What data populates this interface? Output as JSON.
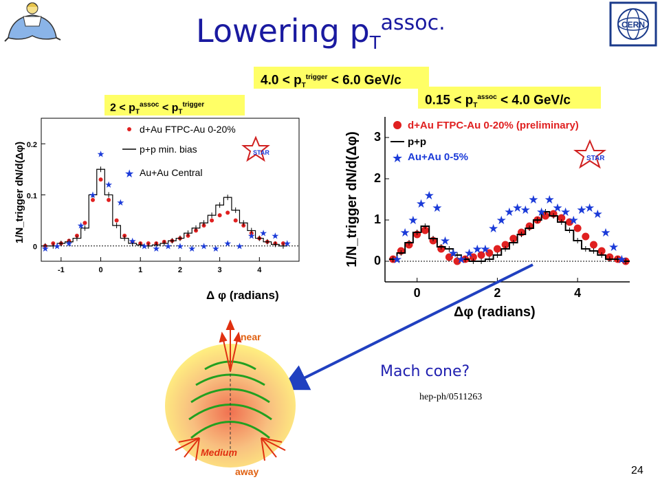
{
  "slide": {
    "title_main": "Lowering p",
    "title_sub": "T",
    "title_sup": "assoc.",
    "page_number": "24",
    "mach_cone_label": "Mach cone?",
    "reference": "hep-ph/0511263",
    "cern_logo_text": "CERN"
  },
  "boxes": {
    "trigger_range": {
      "pre": "4.0 < p",
      "sub": "T",
      "sup": "trigger",
      "post": " < 6.0 GeV/c"
    },
    "assoc_range_right": {
      "pre": "0.15 < p",
      "sub": "T",
      "sup": "assoc",
      "post": " < 4.0 GeV/c"
    },
    "assoc_range_left": {
      "pre": "2 < p",
      "sub": "T",
      "sup": "assoc",
      "mid": " < p",
      "sub2": "T",
      "sup2": "trigger"
    }
  },
  "diagram": {
    "near_label": "near",
    "away_label": "away",
    "medium_label": "Medium"
  },
  "colors": {
    "title": "#1a1aa0",
    "box": "#ffff66",
    "dAu": "#e02020",
    "AuAu": "#1a3ad8",
    "pp": "#000000",
    "arrow": "#2040c0"
  },
  "chart_data": [
    {
      "type": "scatter",
      "xlabel": "Δ φ (radians)",
      "ylabel": "1/N_trigger dN/d(Δφ)",
      "xlim": [
        -1.5,
        5.0
      ],
      "ylim": [
        -0.03,
        0.25
      ],
      "xticks": [
        "-1",
        "0",
        "1",
        "2",
        "3",
        "4"
      ],
      "yticks": [
        "0",
        "0.1",
        "0.2"
      ],
      "legend": [
        "d+Au FTPC-Au 0-20%",
        "p+p min. bias",
        "Au+Au Central"
      ],
      "legend_position": "top-right",
      "series": [
        {
          "name": "d+Au FTPC-Au 0-20%",
          "marker": "dot",
          "x": [
            -1.4,
            -1.2,
            -1.0,
            -0.8,
            -0.6,
            -0.4,
            -0.2,
            0.0,
            0.2,
            0.4,
            0.6,
            0.8,
            1.0,
            1.2,
            1.4,
            1.6,
            1.8,
            2.0,
            2.2,
            2.4,
            2.6,
            2.8,
            3.0,
            3.2,
            3.4,
            3.6,
            3.8,
            4.0,
            4.2,
            4.4,
            4.6
          ],
          "y": [
            0.0,
            0.005,
            0.005,
            0.01,
            0.02,
            0.045,
            0.09,
            0.13,
            0.09,
            0.05,
            0.02,
            0.008,
            0.005,
            0.005,
            0.005,
            0.008,
            0.01,
            0.015,
            0.02,
            0.03,
            0.04,
            0.05,
            0.06,
            0.065,
            0.05,
            0.04,
            0.025,
            0.015,
            0.008,
            0.005,
            0.005
          ]
        },
        {
          "name": "p+p min. bias",
          "marker": "step",
          "x": [
            -1.4,
            -1.2,
            -1.0,
            -0.8,
            -0.6,
            -0.4,
            -0.2,
            0.0,
            0.2,
            0.4,
            0.6,
            0.8,
            1.0,
            1.2,
            1.4,
            1.6,
            1.8,
            2.0,
            2.2,
            2.4,
            2.6,
            2.8,
            3.0,
            3.2,
            3.4,
            3.6,
            3.8,
            4.0,
            4.2,
            4.4,
            4.6
          ],
          "y": [
            0.0,
            0.0,
            0.005,
            0.008,
            0.015,
            0.035,
            0.1,
            0.15,
            0.1,
            0.04,
            0.015,
            0.005,
            0.002,
            0.0,
            0.002,
            0.005,
            0.01,
            0.015,
            0.025,
            0.035,
            0.045,
            0.06,
            0.08,
            0.095,
            0.07,
            0.045,
            0.03,
            0.015,
            0.008,
            0.003,
            0.0
          ]
        },
        {
          "name": "Au+Au Central",
          "marker": "star",
          "x": [
            -1.4,
            -1.1,
            -0.8,
            -0.5,
            -0.2,
            0.0,
            0.2,
            0.5,
            0.8,
            1.1,
            1.4,
            1.7,
            2.0,
            2.3,
            2.6,
            2.9,
            3.2,
            3.5,
            3.8,
            4.1,
            4.4,
            4.7
          ],
          "y": [
            -0.005,
            0.0,
            0.005,
            0.04,
            0.1,
            0.18,
            0.12,
            0.085,
            0.01,
            0.0,
            -0.005,
            0.0,
            0.0,
            -0.005,
            0.0,
            -0.005,
            0.005,
            0.0,
            0.02,
            0.025,
            0.02,
            0.005
          ]
        }
      ]
    },
    {
      "type": "scatter",
      "xlabel": "Δφ (radians)",
      "ylabel": "1/N_trigger dN/d(Δφ)",
      "xlim": [
        -0.8,
        5.3
      ],
      "ylim": [
        -0.5,
        3.5
      ],
      "xticks": [
        "0",
        "2",
        "4"
      ],
      "yticks": [
        "0",
        "1",
        "2",
        "3"
      ],
      "legend": [
        "d+Au FTPC-Au 0-20% (preliminary)",
        "p+p",
        "Au+Au 0-5%"
      ],
      "legend_position": "top-left",
      "series": [
        {
          "name": "d+Au FTPC-Au 0-20% (preliminary)",
          "marker": "dot",
          "x": [
            -0.6,
            -0.4,
            -0.2,
            0.0,
            0.2,
            0.4,
            0.6,
            0.8,
            1.0,
            1.2,
            1.4,
            1.6,
            1.8,
            2.0,
            2.2,
            2.4,
            2.6,
            2.8,
            3.0,
            3.2,
            3.4,
            3.6,
            3.8,
            4.0,
            4.2,
            4.4,
            4.6,
            4.8,
            5.0,
            5.2
          ],
          "y": [
            0.05,
            0.25,
            0.4,
            0.65,
            0.75,
            0.5,
            0.3,
            0.1,
            0.0,
            0.05,
            0.1,
            0.15,
            0.2,
            0.3,
            0.4,
            0.55,
            0.7,
            0.85,
            1.0,
            1.1,
            1.15,
            1.05,
            0.95,
            0.8,
            0.6,
            0.4,
            0.25,
            0.1,
            0.05,
            0.0
          ]
        },
        {
          "name": "p+p",
          "marker": "step",
          "x": [
            -0.6,
            -0.4,
            -0.2,
            0.0,
            0.2,
            0.4,
            0.6,
            0.8,
            1.0,
            1.2,
            1.4,
            1.6,
            1.8,
            2.0,
            2.2,
            2.4,
            2.6,
            2.8,
            3.0,
            3.2,
            3.4,
            3.6,
            3.8,
            4.0,
            4.2,
            4.4,
            4.6,
            4.8,
            5.0,
            5.2
          ],
          "y": [
            0.05,
            0.2,
            0.45,
            0.7,
            0.85,
            0.55,
            0.35,
            0.3,
            0.15,
            0.05,
            0.0,
            0.0,
            0.05,
            0.15,
            0.3,
            0.45,
            0.65,
            0.8,
            1.0,
            1.2,
            1.1,
            0.95,
            0.75,
            0.5,
            0.3,
            0.25,
            0.15,
            0.05,
            0.05,
            0.0
          ]
        },
        {
          "name": "Au+Au 0-5%",
          "marker": "star",
          "x": [
            -0.5,
            -0.3,
            -0.1,
            0.1,
            0.3,
            0.5,
            0.7,
            0.9,
            1.1,
            1.3,
            1.5,
            1.7,
            1.9,
            2.1,
            2.3,
            2.5,
            2.7,
            2.9,
            3.1,
            3.3,
            3.5,
            3.7,
            3.9,
            4.1,
            4.3,
            4.5,
            4.7,
            4.9,
            5.1
          ],
          "y": [
            0.05,
            0.7,
            1.0,
            1.4,
            1.6,
            1.3,
            0.5,
            0.2,
            0.05,
            0.2,
            0.3,
            0.3,
            0.8,
            1.0,
            1.2,
            1.3,
            1.25,
            1.5,
            1.2,
            1.5,
            1.3,
            1.2,
            1.0,
            1.25,
            1.3,
            1.15,
            0.7,
            0.35,
            0.05
          ]
        }
      ]
    }
  ]
}
